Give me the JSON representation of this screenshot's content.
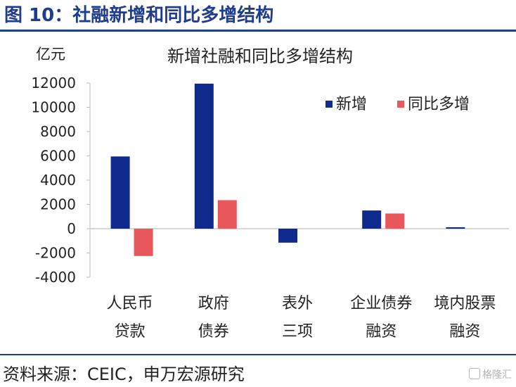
{
  "figure_title": "图 10：社融新增和同比多增结构",
  "source": "资料来源：CEIC，申万宏源研究",
  "watermark": "格隆汇",
  "colors": {
    "brand": "#1f3d8c",
    "new": "#0d2a8c",
    "yoy": "#e8585a"
  },
  "chart_data": {
    "type": "bar",
    "title": "新增社融和同比多增结构",
    "ylabel": "亿元",
    "ylim": [
      -4000,
      12000
    ],
    "yticks": [
      12000,
      10000,
      8000,
      6000,
      4000,
      2000,
      0,
      -2000,
      -4000
    ],
    "legend_position": "top-right",
    "categories": [
      [
        "人民币",
        "贷款"
      ],
      [
        "政府",
        "债券"
      ],
      [
        "表外",
        "三项"
      ],
      [
        "企业债券",
        "融资"
      ],
      [
        "境内股票",
        "融资"
      ]
    ],
    "series": [
      {
        "name": "新增",
        "color": "#0d2a8c",
        "values": [
          5950,
          11950,
          -1150,
          1500,
          120
        ]
      },
      {
        "name": "同比多增",
        "color": "#e8585a",
        "values": [
          -2250,
          2350,
          0,
          1250,
          0
        ]
      }
    ]
  }
}
